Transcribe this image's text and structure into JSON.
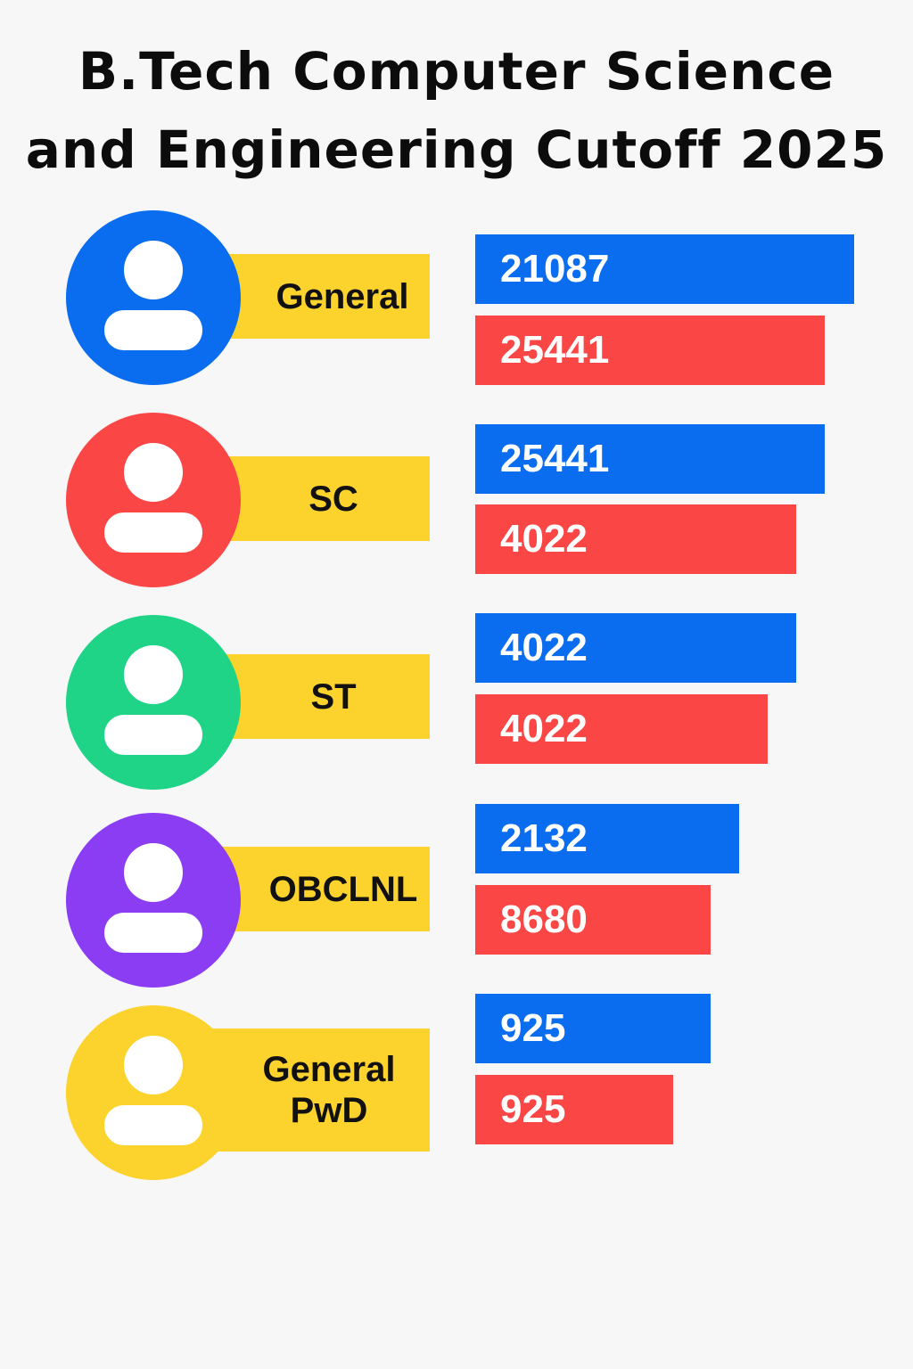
{
  "title_line1": "B.Tech Computer Science",
  "title_line2": "and Engineering Cutoff 2025",
  "colors": {
    "background": "#f7f7f7",
    "label_box": "#fcd22c",
    "series_blue": "#0a6cee",
    "series_red": "#fb4646"
  },
  "chart_data": {
    "type": "bar",
    "orientation": "horizontal",
    "categories": [
      "General",
      "SC",
      "ST",
      "OBCLNL",
      "General PwD"
    ],
    "avatar_colors": [
      "#0a6cee",
      "#fb4646",
      "#1fd387",
      "#8a3df2",
      "#fcd22c"
    ],
    "series": [
      {
        "color": "#0a6cee",
        "values": [
          21087,
          25441,
          4022,
          2132,
          925
        ]
      },
      {
        "color": "#fb4646",
        "values": [
          25441,
          4022,
          4022,
          8680,
          925
        ]
      }
    ]
  },
  "rows": [
    {
      "label": "General",
      "blue_label": "21087",
      "red_label": "25441"
    },
    {
      "label": "SC",
      "blue_label": "25441",
      "red_label": "4022"
    },
    {
      "label": "ST",
      "blue_label": "4022",
      "red_label": "4022"
    },
    {
      "label": "OBCLNL",
      "blue_label": "2132",
      "red_label": "8680"
    },
    {
      "label_line1": "General",
      "label_line2": "PwD",
      "blue_label": "925",
      "red_label": "925"
    }
  ]
}
